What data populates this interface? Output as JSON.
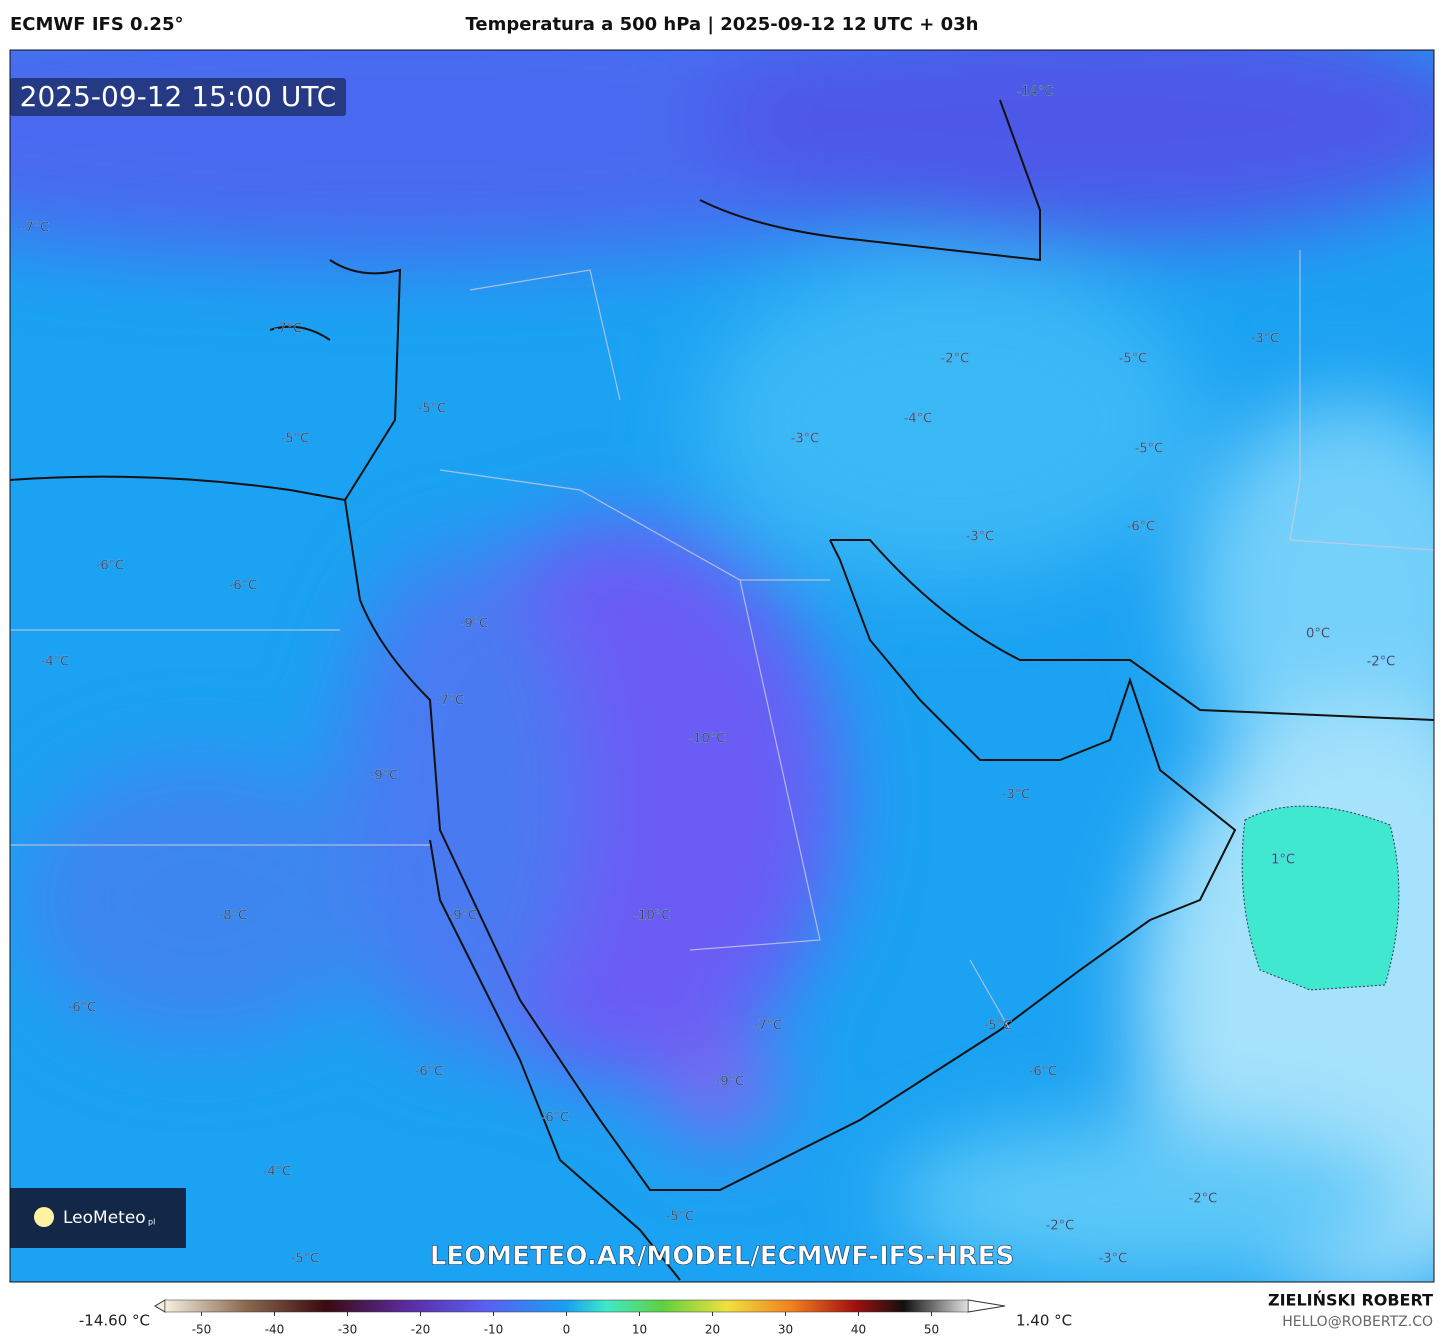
{
  "header": {
    "model": "ECMWF IFS 0.25°",
    "title": "Temperatura a 500 hPa | 2025-09-12 12 UTC + 03h"
  },
  "map": {
    "valid_time": "2025-09-12 15:00 UTC",
    "contour_labels": [
      "-14°C",
      "-7°C",
      "-7°C",
      "-2°C",
      "-5°C",
      "-3°C",
      "-5°C",
      "-5°C",
      "-3°C",
      "-4°C",
      "-5°C",
      "-6°C",
      "-3°C",
      "-6°C",
      "-6°C",
      "0°C",
      "-2°C",
      "-9°C",
      "-4°C",
      "-7°C",
      "-10°C",
      "-9°C",
      "-3°C",
      "1°C",
      "-8°C",
      "-9°C",
      "-10°C",
      "-6°C",
      "-7°C",
      "-5°C",
      "-6°C",
      "-6°C",
      "-9°C",
      "-6°C",
      "-4°C",
      "-5°C",
      "-2°C",
      "-2°C",
      "-3°C",
      "-5°C"
    ],
    "watermark": "LEOMETEO.AR/MODEL/ECMWF-IFS-HRES",
    "logo": {
      "name": "LeoMeteo",
      "suffix": "pl"
    }
  },
  "colorbar": {
    "min_label": "-14.60 °C",
    "max_label": "1.40 °C",
    "range": [
      -55,
      55
    ],
    "ticks": [
      -50,
      -40,
      -30,
      -20,
      -10,
      0,
      10,
      20,
      30,
      40,
      50
    ]
  },
  "footer": {
    "author": "ZIELIŃSKI ROBERT",
    "contact": "HELLO@ROBERTZ.CO"
  }
}
